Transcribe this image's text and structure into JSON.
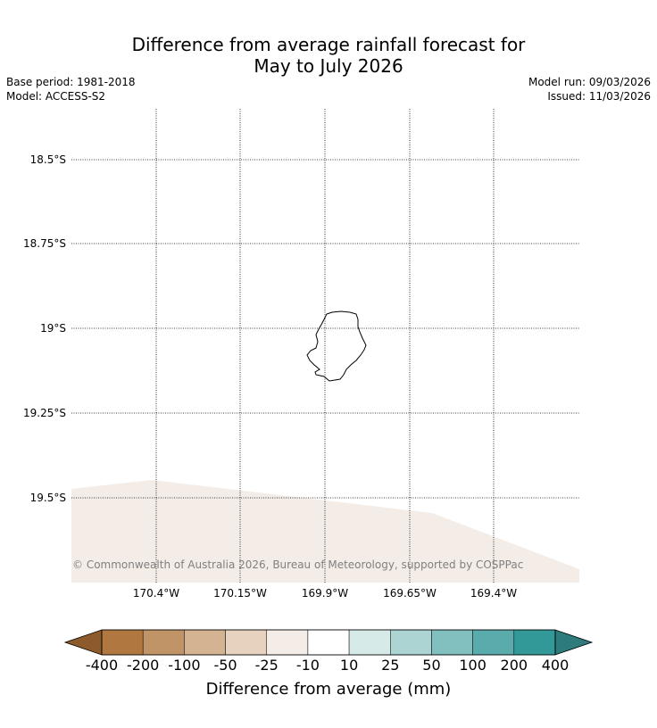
{
  "header": {
    "title_line1": "Difference from average rainfall forecast for",
    "title_line2": "May to July 2026",
    "base_period": "Base period: 1981-2018",
    "model": "Model: ACCESS-S2",
    "model_run": "Model run: 09/03/2026",
    "issued": "Issued: 11/03/2026"
  },
  "map": {
    "latitude_labels": [
      "18.5°S",
      "18.75°S",
      "19°S",
      "19.25°S",
      "19.5°S"
    ],
    "longitude_labels": [
      "170.4°W",
      "170.15°W",
      "169.9°W",
      "169.65°W",
      "169.4°W"
    ],
    "copyright": "© Commonwealth of Australia 2026, Bureau of Meteorology, supported by COSPPac",
    "colors": {
      "background": "#ffffff",
      "shaded_region": "#f4ede7",
      "coastline": "#000000"
    }
  },
  "colorbar": {
    "title": "Difference from average (mm)",
    "tick_labels": [
      "-400",
      "-200",
      "-100",
      "-50",
      "-25",
      "-10",
      "10",
      "25",
      "50",
      "100",
      "200",
      "400"
    ],
    "colors": [
      "#8c5a2b",
      "#b07840",
      "#c19468",
      "#d4b392",
      "#e6d2be",
      "#f4ede7",
      "#ffffff",
      "#d6ebe8",
      "#acd4d2",
      "#82bfbf",
      "#5aacac",
      "#339998",
      "#2e7b7b"
    ]
  }
}
